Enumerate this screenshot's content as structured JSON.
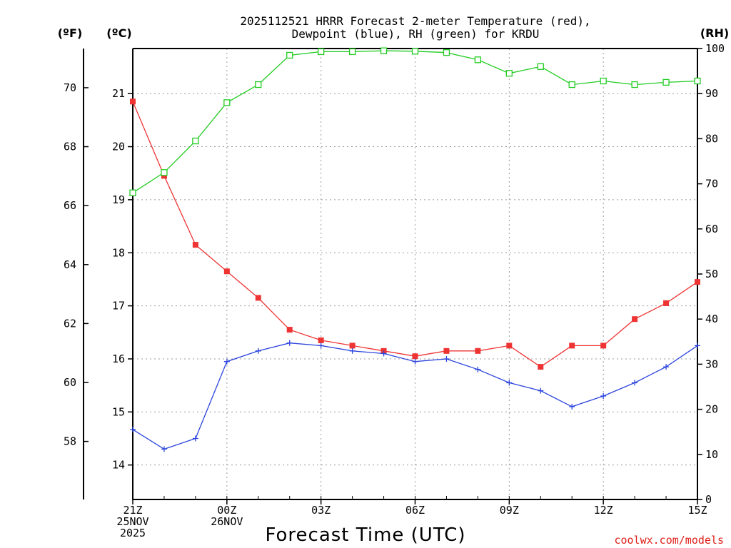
{
  "chart_data": {
    "type": "line",
    "title_line1": "2025112521 HRRR Forecast 2-meter Temperature (red),",
    "title_line2": "Dewpoint (blue), RH (green) for KRDU",
    "xlabel": "Forecast Time (UTC)",
    "credit": "coolwx.com/models",
    "axes": {
      "fahrenheit": {
        "label": "(ºF)",
        "ticks": [
          "58",
          "60",
          "62",
          "64",
          "66",
          "68",
          "70"
        ]
      },
      "celsius": {
        "label": "(ºC)",
        "ticks": [
          "14",
          "15",
          "16",
          "17",
          "18",
          "19",
          "20",
          "21"
        ],
        "ylim": [
          13.35,
          21.85
        ]
      },
      "rh": {
        "label": "(RH)",
        "ticks": [
          "0",
          "10",
          "20",
          "30",
          "40",
          "50",
          "60",
          "70",
          "80",
          "90",
          "100"
        ],
        "ylim": [
          0,
          100
        ]
      }
    },
    "x_hours": [
      0,
      1,
      2,
      3,
      4,
      5,
      6,
      7,
      8,
      9,
      10,
      11,
      12,
      13,
      14,
      15,
      16,
      17,
      18
    ],
    "x_ticks": [
      {
        "h": 0,
        "lines": [
          "21Z",
          "25NOV",
          "2025"
        ]
      },
      {
        "h": 3,
        "lines": [
          "00Z",
          "26NOV"
        ]
      },
      {
        "h": 6,
        "lines": [
          "03Z"
        ]
      },
      {
        "h": 9,
        "lines": [
          "06Z"
        ]
      },
      {
        "h": 12,
        "lines": [
          "09Z"
        ]
      },
      {
        "h": 15,
        "lines": [
          "12Z"
        ]
      },
      {
        "h": 18,
        "lines": [
          "15Z"
        ]
      }
    ],
    "series": [
      {
        "name": "Temperature",
        "unit": "C",
        "color": "#ee3333",
        "marker": "filled-square",
        "values": [
          20.85,
          19.45,
          18.15,
          17.65,
          17.15,
          16.55,
          16.35,
          16.25,
          16.15,
          16.05,
          16.15,
          16.15,
          16.25,
          15.85,
          16.25,
          16.25,
          16.75,
          17.05,
          17.45
        ]
      },
      {
        "name": "Dewpoint",
        "unit": "C",
        "color": "#2b44dd",
        "marker": "plus",
        "values": [
          14.67,
          14.3,
          14.5,
          15.95,
          16.15,
          16.3,
          16.25,
          16.15,
          16.1,
          15.95,
          16.0,
          15.8,
          15.55,
          15.4,
          15.1,
          15.3,
          15.55,
          15.85,
          16.25
        ]
      },
      {
        "name": "RH",
        "unit": "%",
        "color": "#22cc22",
        "marker": "open-square",
        "values": [
          68,
          72.5,
          79.5,
          88,
          92,
          98.5,
          99.3,
          99.3,
          99.5,
          99.4,
          99.1,
          97.5,
          94.5,
          96,
          92,
          92.8,
          92,
          92.5,
          92.8
        ]
      }
    ]
  }
}
